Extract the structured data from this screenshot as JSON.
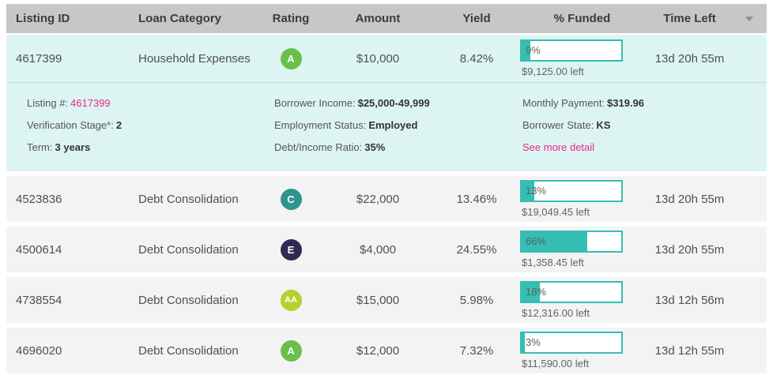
{
  "colors": {
    "header_bg": "#c7c7c7",
    "selected_row_bg": "#dcf5f3",
    "row_bg": "#f3f3f3",
    "accent_teal": "#35beb4",
    "accent_pink": "#ea2a87",
    "rating_a": "#6abf4b",
    "rating_aa": "#b8cf2e",
    "rating_c": "#2e948c",
    "rating_e": "#312b52"
  },
  "table": {
    "header": {
      "columns": [
        "Listing ID",
        "Loan Category",
        "Rating",
        "Amount",
        "Yield",
        "% Funded",
        "Time Left"
      ],
      "sort_icon": "caret-down"
    },
    "rows": [
      {
        "listing_id": "4617399",
        "category": "Household Expenses",
        "rating": "A",
        "rating_color": "#6abf4b",
        "amount": "$10,000",
        "yield": "8.42%",
        "funded_pct": 9,
        "funded_label": "9%",
        "amount_left": "$9,125.00 left",
        "time_left": "13d 20h 55m",
        "selected": true
      },
      {
        "listing_id": "4523836",
        "category": "Debt Consolidation",
        "rating": "C",
        "rating_color": "#2e948c",
        "amount": "$22,000",
        "yield": "13.46%",
        "funded_pct": 13,
        "funded_label": "13%",
        "amount_left": "$19,049.45 left",
        "time_left": "13d 20h 55m",
        "selected": false
      },
      {
        "listing_id": "4500614",
        "category": "Debt Consolidation",
        "rating": "E",
        "rating_color": "#312b52",
        "amount": "$4,000",
        "yield": "24.55%",
        "funded_pct": 66,
        "funded_label": "66%",
        "amount_left": "$1,358.45 left",
        "time_left": "13d 20h 55m",
        "selected": false
      },
      {
        "listing_id": "4738554",
        "category": "Debt Consolidation",
        "rating": "AA",
        "rating_color": "#b8cf2e",
        "amount": "$15,000",
        "yield": "5.98%",
        "funded_pct": 18,
        "funded_label": "18%",
        "amount_left": "$12,316.00 left",
        "time_left": "13d 12h 56m",
        "selected": false
      },
      {
        "listing_id": "4696020",
        "category": "Debt Consolidation",
        "rating": "A",
        "rating_color": "#6abf4b",
        "amount": "$12,000",
        "yield": "7.32%",
        "funded_pct": 3,
        "funded_label": "3%",
        "amount_left": "$11,590.00 left",
        "time_left": "13d 12h 55m",
        "selected": false
      }
    ]
  },
  "detail": {
    "listing_label": "Listing #:",
    "listing_value": "4617399",
    "verification_label": "Verification Stage*:",
    "verification_value": "2",
    "term_label": "Term:",
    "term_value": "3 years",
    "income_label": "Borrower Income:",
    "income_value": "$25,000-49,999",
    "employment_label": "Employment Status:",
    "employment_value": "Employed",
    "dti_label": "Debt/Income Ratio:",
    "dti_value": "35%",
    "payment_label": "Monthly Payment:",
    "payment_value": "$319.96",
    "state_label": "Borrower State:",
    "state_value": "KS",
    "more_detail_link": "See more detail"
  }
}
